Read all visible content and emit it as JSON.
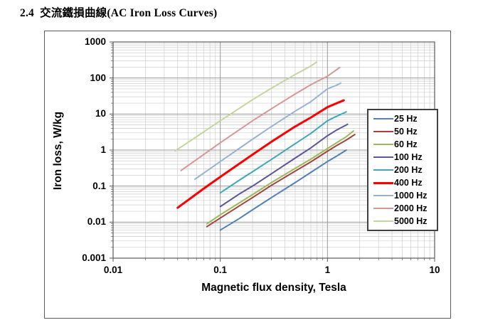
{
  "page": {
    "section_number": "2.4",
    "title": "交流鐵損曲線(AC Iron Loss Curves)"
  },
  "chart_data": {
    "type": "line",
    "title": "AC Iron Loss Curves",
    "xlabel": "Magnetic flux density, Tesla",
    "ylabel": "Iron loss, W/kg",
    "x_scale": "log",
    "y_scale": "log",
    "xlim": [
      0.01,
      10
    ],
    "ylim": [
      0.001,
      1000
    ],
    "x_ticks": [
      "0.01",
      "0.1",
      "1",
      "10"
    ],
    "y_ticks": [
      "1000",
      "100",
      "10",
      "1",
      "0.1",
      "0.01",
      "0.001"
    ],
    "grid": "major and minor log gridlines, both axes",
    "legend_position": "right overlay inside plot",
    "colors": {
      "grid_minor": "#cfcfcf",
      "grid_major": "#9a9a9a",
      "plot_border": "#595959",
      "text": "#000000"
    },
    "series": [
      {
        "name": "25 Hz",
        "color": "#4F81BD",
        "width": 2,
        "points": [
          [
            0.1,
            0.006
          ],
          [
            0.15,
            0.0125
          ],
          [
            0.2,
            0.022
          ],
          [
            0.3,
            0.048
          ],
          [
            0.5,
            0.125
          ],
          [
            0.7,
            0.24
          ],
          [
            1.0,
            0.48
          ],
          [
            1.2,
            0.66
          ],
          [
            1.5,
            1.0
          ]
        ]
      },
      {
        "name": "50 Hz",
        "color": "#A5443F",
        "width": 2,
        "points": [
          [
            0.075,
            0.0075
          ],
          [
            0.1,
            0.013
          ],
          [
            0.15,
            0.028
          ],
          [
            0.2,
            0.048
          ],
          [
            0.3,
            0.105
          ],
          [
            0.5,
            0.26
          ],
          [
            0.7,
            0.47
          ],
          [
            1.0,
            0.93
          ],
          [
            1.2,
            1.3
          ],
          [
            1.5,
            1.9
          ],
          [
            1.8,
            2.7
          ]
        ]
      },
      {
        "name": "60 Hz",
        "color": "#9BBB59",
        "width": 2,
        "points": [
          [
            0.075,
            0.009
          ],
          [
            0.1,
            0.016
          ],
          [
            0.15,
            0.034
          ],
          [
            0.2,
            0.058
          ],
          [
            0.3,
            0.125
          ],
          [
            0.5,
            0.31
          ],
          [
            0.7,
            0.56
          ],
          [
            1.0,
            1.1
          ],
          [
            1.2,
            1.55
          ],
          [
            1.5,
            2.35
          ],
          [
            1.75,
            3.4
          ]
        ]
      },
      {
        "name": "100 Hz",
        "color": "#5D549B",
        "width": 2,
        "points": [
          [
            0.1,
            0.027
          ],
          [
            0.15,
            0.06
          ],
          [
            0.2,
            0.1
          ],
          [
            0.3,
            0.22
          ],
          [
            0.5,
            0.6
          ],
          [
            0.7,
            1.15
          ],
          [
            1.0,
            2.5
          ],
          [
            1.2,
            3.5
          ],
          [
            1.54,
            5.2
          ]
        ]
      },
      {
        "name": "200 Hz",
        "color": "#3BA8BE",
        "width": 2,
        "points": [
          [
            0.1,
            0.065
          ],
          [
            0.15,
            0.145
          ],
          [
            0.2,
            0.25
          ],
          [
            0.3,
            0.55
          ],
          [
            0.5,
            1.5
          ],
          [
            0.7,
            2.9
          ],
          [
            1.0,
            6.5
          ],
          [
            1.2,
            8.5
          ],
          [
            1.5,
            11.5
          ]
        ]
      },
      {
        "name": "400 Hz",
        "color": "#FF0000",
        "width": 3,
        "points": [
          [
            0.04,
            0.025
          ],
          [
            0.07,
            0.085
          ],
          [
            0.1,
            0.18
          ],
          [
            0.2,
            0.75
          ],
          [
            0.3,
            1.7
          ],
          [
            0.5,
            4.5
          ],
          [
            0.7,
            8.0
          ],
          [
            1.0,
            15.5
          ],
          [
            1.2,
            19.5
          ],
          [
            1.42,
            24
          ]
        ]
      },
      {
        "name": "1000 Hz",
        "color": "#95B3D7",
        "width": 2,
        "points": [
          [
            0.058,
            0.155
          ],
          [
            0.1,
            0.48
          ],
          [
            0.2,
            2.0
          ],
          [
            0.3,
            4.5
          ],
          [
            0.5,
            12
          ],
          [
            0.7,
            22
          ],
          [
            1.0,
            50
          ],
          [
            1.2,
            62
          ],
          [
            1.33,
            72
          ]
        ]
      },
      {
        "name": "2000 Hz",
        "color": "#D99694",
        "width": 2,
        "points": [
          [
            0.043,
            0.27
          ],
          [
            0.07,
            0.75
          ],
          [
            0.1,
            1.6
          ],
          [
            0.2,
            6.5
          ],
          [
            0.3,
            14
          ],
          [
            0.5,
            36
          ],
          [
            0.7,
            65
          ],
          [
            1.0,
            112
          ],
          [
            1.3,
            195
          ]
        ]
      },
      {
        "name": "5000 Hz",
        "color": "#C3D69B",
        "width": 2,
        "points": [
          [
            0.038,
            0.95
          ],
          [
            0.07,
            3.2
          ],
          [
            0.1,
            6.5
          ],
          [
            0.2,
            25
          ],
          [
            0.3,
            52
          ],
          [
            0.5,
            125
          ],
          [
            0.7,
            215
          ],
          [
            0.79,
            275
          ]
        ]
      }
    ]
  }
}
